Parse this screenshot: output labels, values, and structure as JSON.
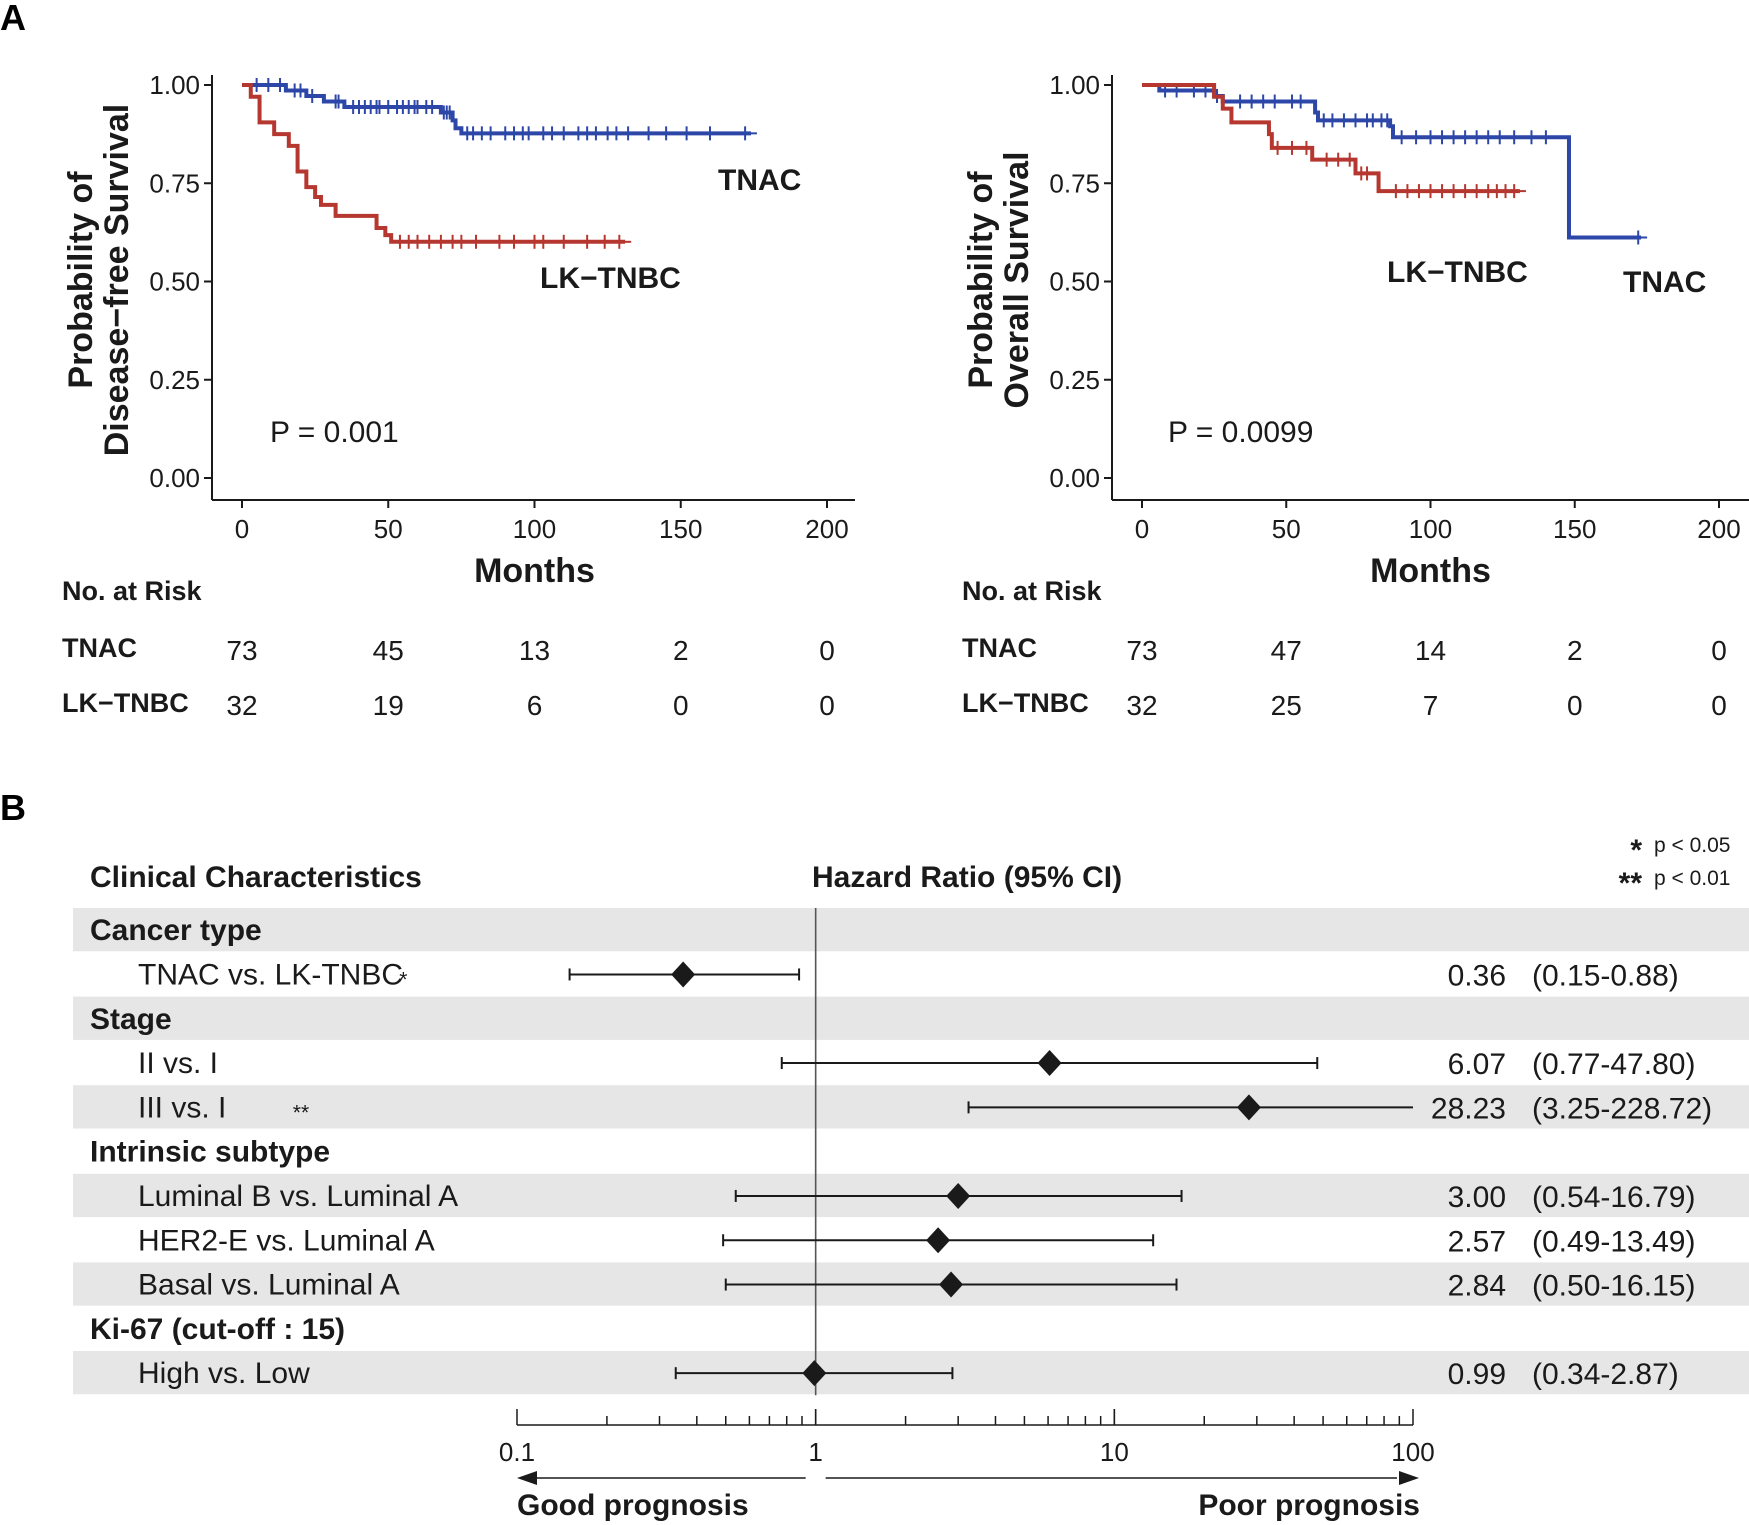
{
  "colors": {
    "tnac": "#2c47a8",
    "lk_tnbc": "#b5372f",
    "row_band": "#e6e6e6",
    "ink": "#1a1a1a"
  },
  "panels": {
    "a_label": "A",
    "b_label": "B"
  },
  "chart_data": [
    {
      "type": "line",
      "subtype": "kaplan-meier",
      "id": "dfs",
      "ylabel_line1": "Probability of",
      "ylabel_line2": "Disease−free Survival",
      "xlabel": "Months",
      "xlim": [
        0,
        200
      ],
      "ylim": [
        0,
        1
      ],
      "xticks": [
        "0",
        "50",
        "100",
        "150",
        "200"
      ],
      "xtick_values": [
        0,
        50,
        100,
        150,
        200
      ],
      "yticks": [
        "0.00",
        "0.25",
        "0.50",
        "0.75",
        "1.00"
      ],
      "ytick_values": [
        0,
        0.25,
        0.5,
        0.75,
        1
      ],
      "p_value": "P = 0.001",
      "series": [
        {
          "name": "TNAC",
          "color_key": "tnac",
          "steps": [
            [
              0,
              1.0
            ],
            [
              15,
              0.986
            ],
            [
              22,
              0.972
            ],
            [
              28,
              0.958
            ],
            [
              35,
              0.944
            ],
            [
              48,
              0.944
            ],
            [
              62,
              0.944
            ],
            [
              68,
              0.93
            ],
            [
              72,
              0.91
            ],
            [
              73,
              0.89
            ],
            [
              75,
              0.877
            ],
            [
              174,
              0.877
            ]
          ],
          "censor": [
            5,
            9,
            13,
            18,
            20,
            24,
            32,
            33,
            38,
            40,
            42,
            44,
            46,
            47,
            50,
            53,
            55,
            57,
            59,
            60,
            63,
            65,
            69,
            70,
            71,
            77,
            79,
            82,
            85,
            90,
            93,
            96,
            98,
            103,
            106,
            110,
            115,
            118,
            121,
            125,
            128,
            132,
            139,
            145,
            152,
            160,
            172
          ]
        },
        {
          "name": "LK−TNBC",
          "color_key": "lk_tnbc",
          "steps": [
            [
              0,
              1.0
            ],
            [
              3,
              0.97
            ],
            [
              6,
              0.905
            ],
            [
              11,
              0.875
            ],
            [
              16,
              0.845
            ],
            [
              19,
              0.78
            ],
            [
              22,
              0.74
            ],
            [
              25,
              0.715
            ],
            [
              27,
              0.695
            ],
            [
              32,
              0.667
            ],
            [
              46,
              0.636
            ],
            [
              49,
              0.618
            ],
            [
              51,
              0.601
            ],
            [
              131,
              0.601
            ]
          ],
          "censor": [
            54,
            57,
            60,
            64,
            68,
            72,
            75,
            80,
            88,
            93,
            100,
            103,
            110,
            118,
            124,
            129
          ]
        }
      ],
      "curve_labels": [
        "TNAC",
        "LK−TNBC"
      ],
      "risk_table": {
        "title": "No. at Risk",
        "times": [
          0,
          50,
          100,
          150,
          200
        ],
        "rows": [
          {
            "label": "TNAC",
            "values": [
              "73",
              "45",
              "13",
              "2",
              "0"
            ]
          },
          {
            "label": "LK−TNBC",
            "values": [
              "32",
              "19",
              "6",
              "0",
              "0"
            ]
          }
        ]
      }
    },
    {
      "type": "line",
      "subtype": "kaplan-meier",
      "id": "os",
      "ylabel_line1": "Probability of",
      "ylabel_line2": "Overall Survival",
      "xlabel": "Months",
      "xlim": [
        0,
        200
      ],
      "ylim": [
        0,
        1
      ],
      "xticks": [
        "0",
        "50",
        "100",
        "150",
        "200"
      ],
      "xtick_values": [
        0,
        50,
        100,
        150,
        200
      ],
      "yticks": [
        "0.00",
        "0.25",
        "0.50",
        "0.75",
        "1.00"
      ],
      "ytick_values": [
        0,
        0.25,
        0.5,
        0.75,
        1
      ],
      "p_value": "P = 0.0099",
      "series": [
        {
          "name": "TNAC",
          "color_key": "tnac",
          "steps": [
            [
              0,
              1.0
            ],
            [
              6,
              0.986
            ],
            [
              25,
              0.972
            ],
            [
              28,
              0.958
            ],
            [
              60,
              0.93
            ],
            [
              61,
              0.91
            ],
            [
              86,
              0.895
            ],
            [
              87,
              0.867
            ],
            [
              147,
              0.867
            ],
            [
              148,
              0.612
            ],
            [
              173,
              0.612
            ]
          ],
          "censor": [
            8,
            12,
            18,
            22,
            26,
            34,
            38,
            42,
            46,
            52,
            55,
            63,
            66,
            70,
            74,
            78,
            80,
            83,
            85,
            90,
            95,
            100,
            104,
            108,
            112,
            116,
            120,
            124,
            129,
            135,
            140,
            172
          ]
        },
        {
          "name": "LK−TNBC",
          "color_key": "lk_tnbc",
          "steps": [
            [
              0,
              1.0
            ],
            [
              25,
              0.97
            ],
            [
              28,
              0.94
            ],
            [
              31,
              0.905
            ],
            [
              44,
              0.875
            ],
            [
              45,
              0.84
            ],
            [
              59,
              0.81
            ],
            [
              74,
              0.775
            ],
            [
              82,
              0.73
            ],
            [
              131,
              0.73
            ]
          ],
          "censor": [
            47,
            52,
            57,
            64,
            68,
            72,
            76,
            78,
            88,
            92,
            96,
            100,
            104,
            108,
            112,
            116,
            120,
            123,
            126,
            129
          ]
        }
      ],
      "curve_labels": [
        "LK−TNBC",
        "TNAC"
      ],
      "risk_table": {
        "title": "No. at Risk",
        "times": [
          0,
          50,
          100,
          150,
          200
        ],
        "rows": [
          {
            "label": "TNAC",
            "values": [
              "73",
              "47",
              "14",
              "2",
              "0"
            ]
          },
          {
            "label": "LK−TNBC",
            "values": [
              "32",
              "25",
              "7",
              "0",
              "0"
            ]
          }
        ]
      }
    },
    {
      "type": "forest",
      "id": "cox",
      "column_head_left": "Clinical Characteristics",
      "column_head_center": "Hazard Ratio (95% CI)",
      "legend": [
        {
          "mark": "*",
          "text": "p < 0.05"
        },
        {
          "mark": "**",
          "text": "p < 0.01"
        }
      ],
      "xscale": "log10",
      "xlim": [
        0.1,
        100
      ],
      "xticks": [
        "0.1",
        "1",
        "10",
        "100"
      ],
      "xtick_values": [
        0.1,
        1,
        10,
        100
      ],
      "reference": 1,
      "arrow_left": "Good prognosis",
      "arrow_right": "Poor prognosis",
      "rows": [
        {
          "kind": "group",
          "label": "Cancer type",
          "band": true
        },
        {
          "kind": "item",
          "label": "TNAC vs. LK-TNBC",
          "sig": "*",
          "hr": 0.36,
          "lo": 0.15,
          "hi": 0.88,
          "hr_text": "0.36",
          "ci_text": "(0.15-0.88)",
          "band": false
        },
        {
          "kind": "group",
          "label": "Stage",
          "band": true
        },
        {
          "kind": "item",
          "label": "II vs. I",
          "sig": "",
          "hr": 6.07,
          "lo": 0.77,
          "hi": 47.8,
          "hr_text": "6.07",
          "ci_text": "(0.77-47.80)",
          "band": false
        },
        {
          "kind": "item",
          "label": "III vs. I",
          "sig": "**",
          "hr": 28.23,
          "lo": 3.25,
          "hi": 228.72,
          "hr_text": "28.23",
          "ci_text": "(3.25-228.72)",
          "band": true
        },
        {
          "kind": "group",
          "label": "Intrinsic subtype",
          "band": false
        },
        {
          "kind": "item",
          "label": "Luminal B vs. Luminal A",
          "sig": "",
          "hr": 3.0,
          "lo": 0.54,
          "hi": 16.79,
          "hr_text": "3.00",
          "ci_text": "(0.54-16.79)",
          "band": true
        },
        {
          "kind": "item",
          "label": "HER2-E vs. Luminal A",
          "sig": "",
          "hr": 2.57,
          "lo": 0.49,
          "hi": 13.49,
          "hr_text": "2.57",
          "ci_text": "(0.49-13.49)",
          "band": false
        },
        {
          "kind": "item",
          "label": "Basal vs. Luminal A",
          "sig": "",
          "hr": 2.84,
          "lo": 0.5,
          "hi": 16.15,
          "hr_text": "2.84",
          "ci_text": "(0.50-16.15)",
          "band": true
        },
        {
          "kind": "group",
          "label": "Ki-67 (cut-off : 15)",
          "band": false
        },
        {
          "kind": "item",
          "label": "High vs. Low",
          "sig": "",
          "hr": 0.99,
          "lo": 0.34,
          "hi": 2.87,
          "hr_text": "0.99",
          "ci_text": "(0.34-2.87)",
          "band": true
        }
      ]
    }
  ]
}
